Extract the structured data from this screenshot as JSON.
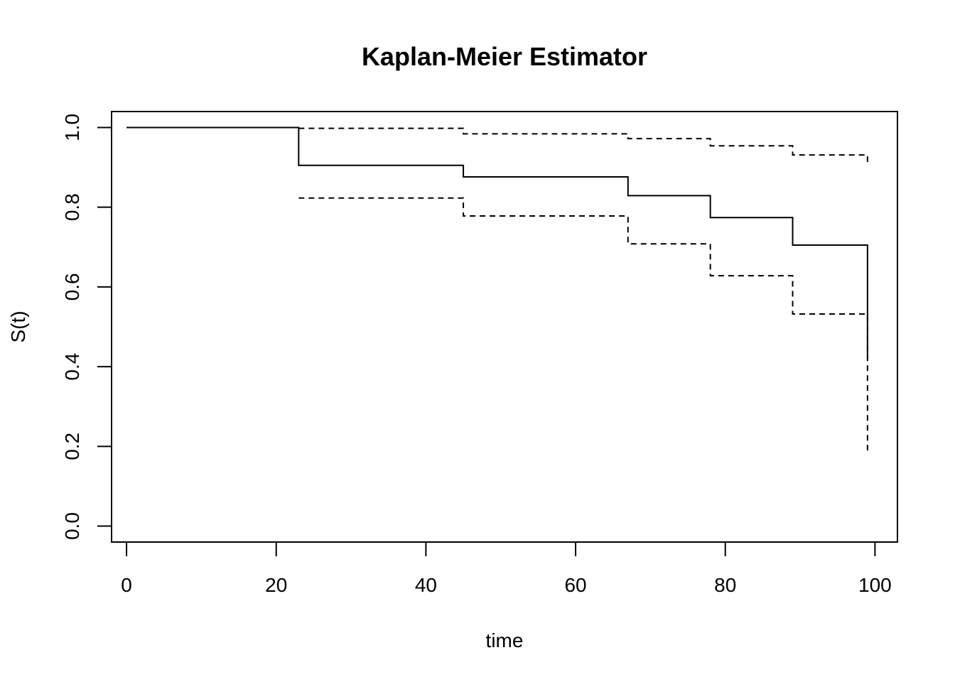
{
  "chart_data": {
    "type": "line",
    "title": "Kaplan-Meier Estimator",
    "xlabel": "time",
    "ylabel": "S(t)",
    "xlim": [
      -2,
      103
    ],
    "ylim": [
      -0.04,
      1.04
    ],
    "xticks": [
      0,
      20,
      40,
      60,
      80,
      100
    ],
    "yticks": [
      0.0,
      0.2,
      0.4,
      0.6,
      0.8,
      1.0
    ],
    "xtick_labels": [
      "0",
      "20",
      "40",
      "60",
      "80",
      "100"
    ],
    "ytick_labels": [
      "0.0",
      "0.2",
      "0.4",
      "0.6",
      "0.8",
      "1.0"
    ],
    "grid": false,
    "series": [
      {
        "style": "solid",
        "color": "#000000",
        "x": [
          0,
          23,
          45,
          67,
          78,
          89,
          99
        ],
        "y": [
          1.0,
          0.905,
          0.876,
          0.829,
          0.774,
          0.705,
          0.42
        ]
      },
      {
        "style": "dashed",
        "color": "#000000",
        "x": [
          23,
          45,
          67,
          78,
          89,
          99
        ],
        "y": [
          0.998,
          0.984,
          0.972,
          0.954,
          0.931,
          0.91
        ]
      },
      {
        "style": "dashed",
        "color": "#000000",
        "x": [
          23,
          45,
          67,
          78,
          89,
          99
        ],
        "y": [
          0.823,
          0.778,
          0.708,
          0.628,
          0.532,
          0.19
        ]
      }
    ]
  }
}
